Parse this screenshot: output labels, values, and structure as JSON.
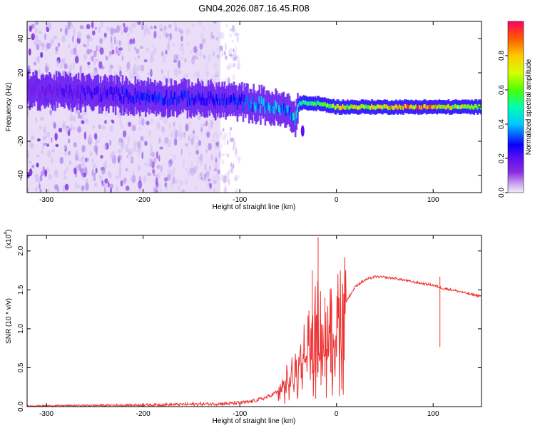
{
  "title": "GN04.2026.087.16.45.R08",
  "colors": {
    "snr_line": "#ee3333",
    "background_white": "#ffffff",
    "background_lavender": "#e9ddf7"
  },
  "chart_data": [
    {
      "type": "heatmap",
      "name": "spectrogram",
      "xlabel": "Height of straight line (km)",
      "ylabel": "Frequency (Hz)",
      "xlim": [
        -320,
        150
      ],
      "ylim": [
        -50,
        50
      ],
      "xticks": [
        -300,
        -200,
        -100,
        0,
        100
      ],
      "xtick_labels": [
        "-300",
        "-200",
        "-100",
        "0",
        "100"
      ],
      "yticks": [
        -40,
        -20,
        0,
        20,
        40
      ],
      "ytick_labels": [
        "-40",
        "-20",
        "0",
        "20",
        "40"
      ],
      "colorbar": {
        "label": "Normalized spectral amplitude",
        "range": [
          0,
          1
        ],
        "ticks": [
          0.0,
          0.2,
          0.4,
          0.6,
          0.8
        ],
        "tick_labels": [
          "0.0",
          "0.2",
          "0.4",
          "0.6",
          "0.8"
        ]
      },
      "ridge_center_hz": {
        "height_km": [
          -320,
          -250,
          -200,
          -150,
          -100,
          -75,
          -50,
          -42,
          -40,
          -38,
          -35,
          -30,
          -20,
          -10,
          0,
          50,
          100,
          150
        ],
        "frequency_hz": [
          10,
          8,
          6,
          5,
          3,
          1,
          -3,
          -6,
          0,
          2,
          3,
          2,
          2,
          1,
          0,
          0,
          0,
          0
        ]
      },
      "ridge_peak_amplitude": {
        "height_km": [
          -320,
          -250,
          -200,
          -150,
          -100,
          -70,
          -50,
          -35,
          -20,
          0,
          50,
          90,
          100,
          150
        ],
        "amplitude": [
          0.15,
          0.25,
          0.3,
          0.3,
          0.3,
          0.45,
          0.4,
          0.55,
          0.6,
          0.75,
          0.78,
          0.95,
          0.85,
          0.6
        ]
      },
      "noise_region_km": [
        -320,
        -120
      ]
    },
    {
      "type": "line",
      "name": "snr",
      "xlabel": "Height of straight line (km)",
      "ylabel": "SNR (10 * v/v)",
      "scale_label": "(x10",
      "scale_exponent": "4",
      "xlim": [
        -320,
        150
      ],
      "ylim": [
        0,
        2.2
      ],
      "xticks": [
        -300,
        -200,
        -100,
        0,
        100
      ],
      "xtick_labels": [
        "-300",
        "-200",
        "-100",
        "0",
        "100"
      ],
      "yticks": [
        0.0,
        0.5,
        1.0,
        1.5,
        2.0
      ],
      "ytick_labels": [
        "0.0",
        "0.5",
        "1.0",
        "1.5",
        "2.0"
      ],
      "series": [
        {
          "name": "SNR",
          "x": [
            -320,
            -200,
            -150,
            -110,
            -90,
            -80,
            -70,
            -60,
            -50,
            -40,
            -30,
            -25,
            -20,
            -15,
            -10,
            -5,
            0,
            10,
            20,
            30,
            40,
            50,
            60,
            80,
            100,
            110,
            120,
            130,
            140,
            150
          ],
          "y": [
            0.01,
            0.02,
            0.03,
            0.04,
            0.06,
            0.09,
            0.13,
            0.2,
            0.3,
            0.45,
            0.7,
            0.85,
            0.9,
            0.8,
            0.75,
            0.85,
            1.05,
            1.35,
            1.55,
            1.63,
            1.67,
            1.66,
            1.65,
            1.6,
            1.56,
            1.52,
            1.5,
            1.47,
            1.44,
            1.42
          ]
        }
      ],
      "spikes": [
        {
          "x": -25,
          "y": 1.75
        },
        {
          "x": -19,
          "y": 2.18
        },
        {
          "x": -22,
          "y": 1.55
        },
        {
          "x": -12,
          "y": 1.4
        },
        {
          "x": -5,
          "y": 1.35
        },
        {
          "x": 107,
          "y": 1.67
        }
      ]
    }
  ]
}
